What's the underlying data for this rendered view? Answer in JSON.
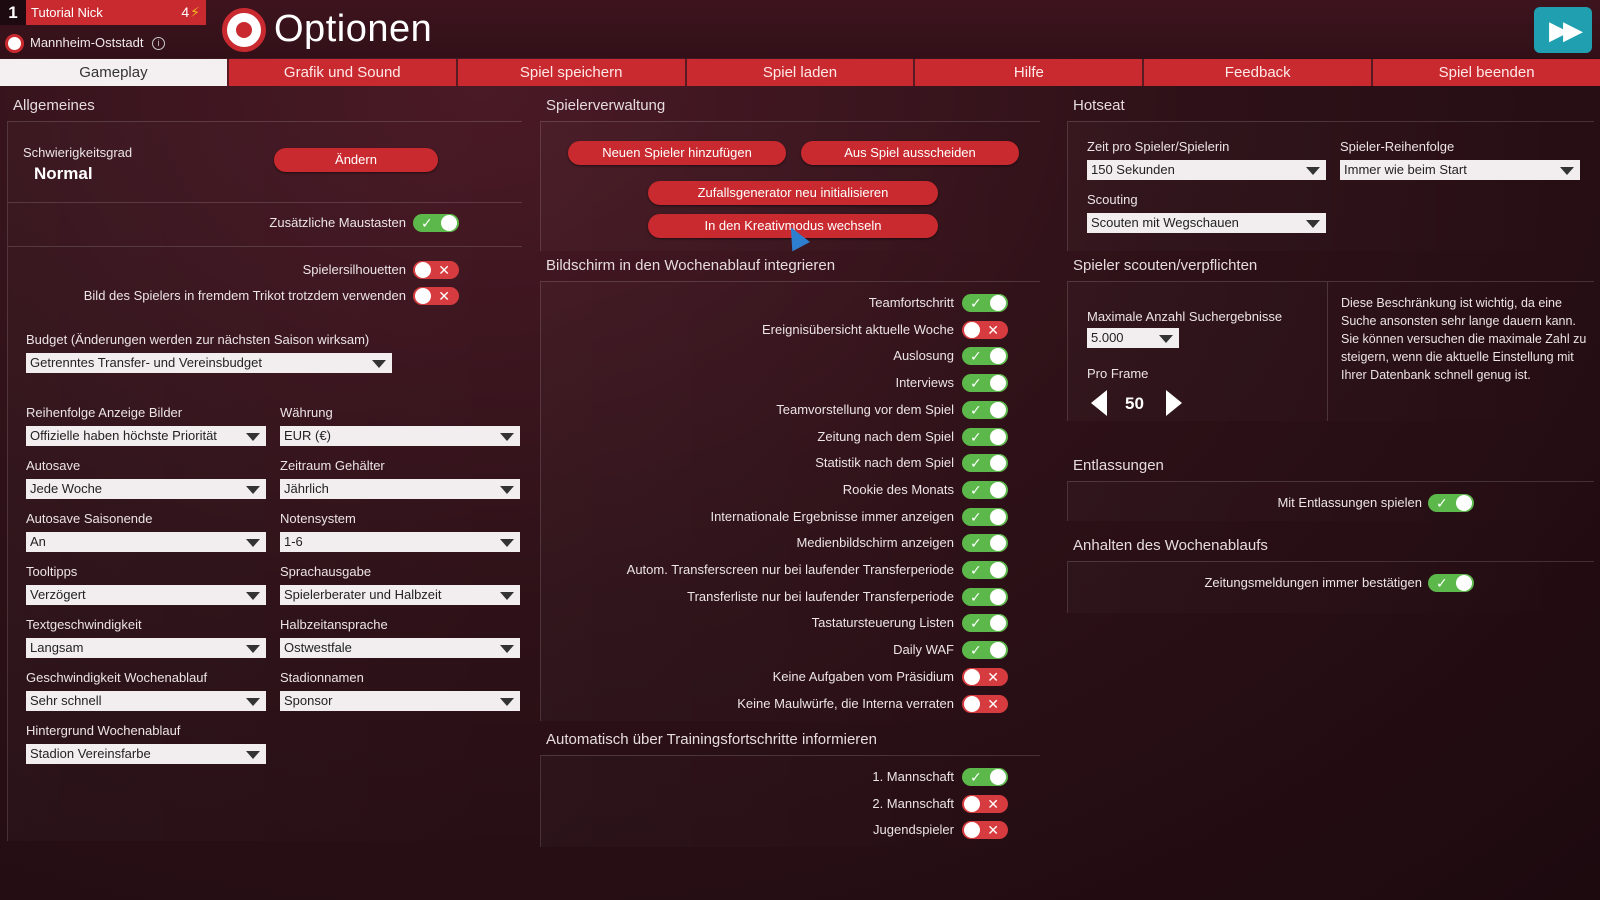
{
  "header": {
    "rank": "1",
    "manager_name": "Tutorial Nick",
    "count": "4",
    "club_city": "Mannheim-Oststadt",
    "page_title": "Optionen"
  },
  "tabs": [
    {
      "label": "Gameplay",
      "active": true
    },
    {
      "label": "Grafik und Sound"
    },
    {
      "label": "Spiel speichern"
    },
    {
      "label": "Spiel laden"
    },
    {
      "label": "Hilfe"
    },
    {
      "label": "Feedback"
    },
    {
      "label": "Spiel beenden"
    }
  ],
  "general": {
    "title": "Allgemeines",
    "difficulty_label": "Schwierigkeitsgrad",
    "difficulty_value": "Normal",
    "change_button": "Ändern",
    "extra_mouse": {
      "label": "Zusätzliche Maustasten",
      "on": true
    },
    "silhouettes": {
      "label": "Spielersilhouetten",
      "on": false
    },
    "foreign_kit": {
      "label": "Bild des Spielers in fremdem Trikot trotzdem verwenden",
      "on": false
    },
    "budget_label": "Budget (Änderungen werden zur nächsten Saison wirksam)",
    "budget_value": "Getrenntes Transfer- und Vereinsbudget",
    "fields": [
      {
        "label": "Reihenfolge Anzeige Bilder",
        "value": "Offizielle haben höchste Priorität"
      },
      {
        "label": "Währung",
        "value": "EUR (€)"
      },
      {
        "label": "Autosave",
        "value": "Jede Woche"
      },
      {
        "label": "Zeitraum Gehälter",
        "value": "Jährlich"
      },
      {
        "label": "Autosave Saisonende",
        "value": "An"
      },
      {
        "label": "Notensystem",
        "value": "1-6"
      },
      {
        "label": "Tooltipps",
        "value": "Verzögert"
      },
      {
        "label": "Sprachausgabe",
        "value": "Spielerberater und Halbzeit"
      },
      {
        "label": "Textgeschwindigkeit",
        "value": "Langsam"
      },
      {
        "label": "Halbzeitansprache",
        "value": "Ostwestfale"
      },
      {
        "label": "Geschwindigkeit Wochenablauf",
        "value": "Sehr schnell"
      },
      {
        "label": "Stadionnamen",
        "value": "Sponsor"
      },
      {
        "label": "Hintergrund Wochenablauf",
        "value": "Stadion Vereinsfarbe"
      }
    ]
  },
  "player_mgmt": {
    "title": "Spielerverwaltung",
    "add_player": "Neuen Spieler hinzufügen",
    "leave_game": "Aus Spiel ausscheiden",
    "reset_random": "Zufallsgenerator neu initialisieren",
    "creative_mode": "In den Kreativmodus wechseln"
  },
  "weekly": {
    "title": "Bildschirm in den Wochenablauf integrieren",
    "items": [
      {
        "label": "Teamfortschritt",
        "on": true
      },
      {
        "label": "Ereignisübersicht aktuelle Woche",
        "on": false
      },
      {
        "label": "Auslosung",
        "on": true
      },
      {
        "label": "Interviews",
        "on": true
      },
      {
        "label": "Teamvorstellung vor dem Spiel",
        "on": true
      },
      {
        "label": "Zeitung nach dem Spiel",
        "on": true
      },
      {
        "label": "Statistik nach dem Spiel",
        "on": true
      },
      {
        "label": "Rookie des Monats",
        "on": true
      },
      {
        "label": "Internationale Ergebnisse immer anzeigen",
        "on": true
      },
      {
        "label": "Medienbildschirm anzeigen",
        "on": true
      },
      {
        "label": "Autom. Transferscreen nur bei laufender Transferperiode",
        "on": true
      },
      {
        "label": "Transferliste nur bei laufender Transferperiode",
        "on": true
      },
      {
        "label": "Tastatursteuerung Listen",
        "on": true
      },
      {
        "label": "Daily WAF",
        "on": true
      },
      {
        "label": "Keine Aufgaben vom Präsidium",
        "on": false
      },
      {
        "label": "Keine Maulwürfe, die Interna verraten",
        "on": false
      }
    ]
  },
  "training": {
    "title": "Automatisch über Trainingsfortschritte informieren",
    "items": [
      {
        "label": "1. Mannschaft",
        "on": true
      },
      {
        "label": "2. Mannschaft",
        "on": false
      },
      {
        "label": "Jugendspieler",
        "on": false
      }
    ]
  },
  "hotseat": {
    "title": "Hotseat",
    "time_label": "Zeit pro Spieler/Spielerin",
    "time_value": "150 Sekunden",
    "order_label": "Spieler-Reihenfolge",
    "order_value": "Immer wie beim Start",
    "scouting_label": "Scouting",
    "scouting_value": "Scouten mit Wegschauen"
  },
  "scout": {
    "title": "Spieler scouten/verpflichten",
    "max_label": "Maximale Anzahl Suchergebnisse",
    "max_value": "5.000",
    "per_frame_label": "Pro Frame",
    "per_frame_value": "50",
    "description": "Diese Beschränkung ist wichtig, da eine Suche ansonsten sehr lange dauern kann. Sie können versuchen die maximale Zahl zu steigern, wenn die aktuelle Einstellung mit Ihrer Datenbank schnell genug ist."
  },
  "dismissals": {
    "title": "Entlassungen",
    "toggle": {
      "label": "Mit Entlassungen spielen",
      "on": true
    }
  },
  "pause": {
    "title": "Anhalten des Wochenablaufs",
    "toggle": {
      "label": "Zeitungsmeldungen immer bestätigen",
      "on": true
    }
  },
  "colors": {
    "accent": "#c92a2f",
    "toggle_on": "#5cb84a",
    "toggle_off": "#d63c3f",
    "skip": "#1f9fb0"
  }
}
